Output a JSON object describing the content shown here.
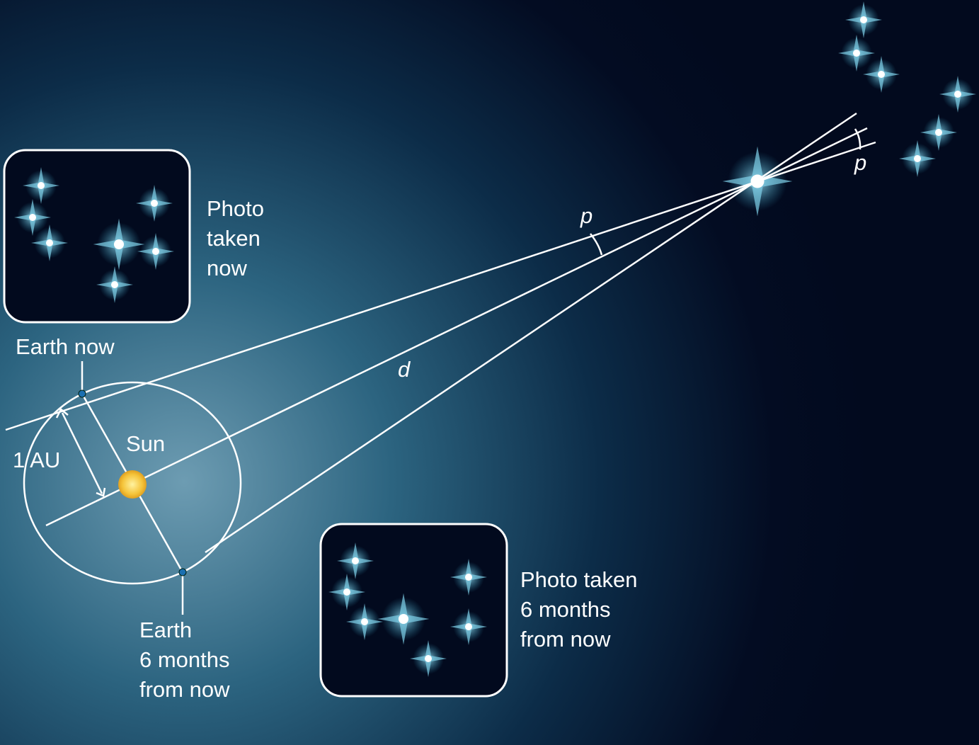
{
  "photo_now": {
    "lines": [
      "Photo",
      "taken",
      "now"
    ]
  },
  "photo_later": {
    "lines": [
      "Photo taken",
      "6 months",
      "from now"
    ]
  },
  "earth_now": "Earth now",
  "earth_later": {
    "lines": [
      "Earth",
      "6 months",
      "from now"
    ]
  },
  "sun": "Sun",
  "au": "1 AU",
  "parallax_angle": "p",
  "distance": "d",
  "parallax_far": "p"
}
